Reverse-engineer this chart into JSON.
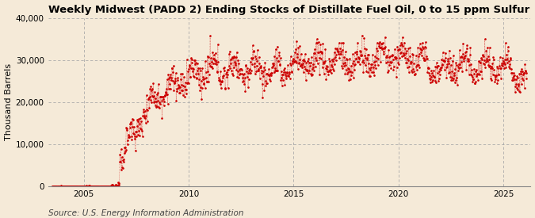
{
  "title": "Weekly Midwest (PADD 2) Ending Stocks of Distillate Fuel Oil, 0 to 15 ppm Sulfur",
  "ylabel": "Thousand Barrels",
  "source": "Source: U.S. Energy Information Administration",
  "background_color": "#f5ead8",
  "line_color": "#cc0000",
  "ylim": [
    0,
    40000
  ],
  "yticks": [
    0,
    10000,
    20000,
    30000,
    40000
  ],
  "ytick_labels": [
    "0",
    "10,000",
    "20,000",
    "30,000",
    "40,000"
  ],
  "xlim_start": 2003.3,
  "xlim_end": 2026.3,
  "xticks": [
    2005,
    2010,
    2015,
    2020,
    2025
  ],
  "title_fontsize": 9.5,
  "ylabel_fontsize": 8,
  "source_fontsize": 7.5
}
